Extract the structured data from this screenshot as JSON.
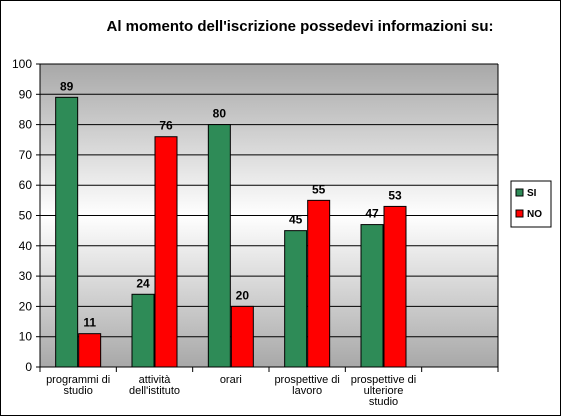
{
  "chart_data": {
    "type": "bar",
    "title": "Al momento dell'iscrizione possedevi informazioni su:",
    "categories": [
      [
        "programmi di",
        "studio"
      ],
      [
        "attività",
        "dell'istituto"
      ],
      [
        "orari"
      ],
      [
        "prospettive di",
        "lavoro"
      ],
      [
        "prospettive di",
        "ulteriore",
        "studio"
      ]
    ],
    "series": [
      {
        "name": "SI",
        "color": "#2E8B57",
        "values": [
          89,
          24,
          80,
          45,
          47
        ]
      },
      {
        "name": "NO",
        "color": "#FF0000",
        "values": [
          11,
          76,
          20,
          55,
          53
        ]
      }
    ],
    "ylim": [
      0,
      100
    ],
    "yticks": [
      0,
      10,
      20,
      30,
      40,
      50,
      60,
      70,
      80,
      90,
      100
    ],
    "grid": true,
    "legend_position": "right",
    "plot_background": "gradient gray-white",
    "xlabel": "",
    "ylabel": ""
  }
}
